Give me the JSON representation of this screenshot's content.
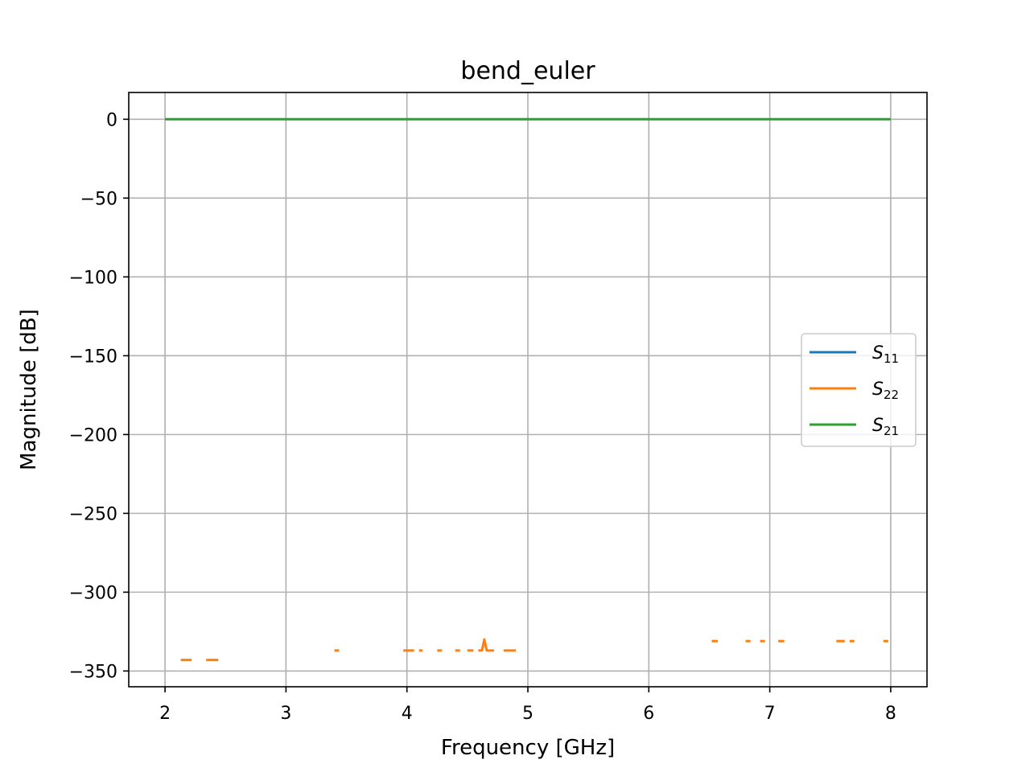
{
  "chart_data": {
    "type": "line",
    "title": "bend_euler",
    "xlabel": "Frequency [GHz]",
    "ylabel": "Magnitude [dB]",
    "xlim": [
      1.7,
      8.3
    ],
    "ylim": [
      -360,
      17
    ],
    "xticks": [
      2,
      3,
      4,
      5,
      6,
      7,
      8
    ],
    "yticks": [
      0,
      -50,
      -100,
      -150,
      -200,
      -250,
      -300,
      -350
    ],
    "xtick_labels": [
      "2",
      "3",
      "4",
      "5",
      "6",
      "7",
      "8"
    ],
    "ytick_labels": [
      "0",
      "−50",
      "−100",
      "−150",
      "−200",
      "−250",
      "−300",
      "−350"
    ],
    "grid": true,
    "legend": "center-right",
    "series": [
      {
        "name": "S11",
        "label_main": "S",
        "label_sub": "11",
        "color": "#1f77b4",
        "segments": []
      },
      {
        "name": "S22",
        "label_main": "S",
        "label_sub": "22",
        "color": "#ff7f0e",
        "segments": [
          [
            [
              2.13,
              -343
            ],
            [
              2.22,
              -343
            ]
          ],
          [
            [
              2.34,
              -343
            ],
            [
              2.44,
              -343
            ]
          ],
          [
            [
              3.4,
              -337
            ],
            [
              3.44,
              -337
            ]
          ],
          [
            [
              3.97,
              -337
            ],
            [
              4.06,
              -337
            ]
          ],
          [
            [
              4.1,
              -337
            ],
            [
              4.13,
              -337
            ]
          ],
          [
            [
              4.25,
              -337
            ],
            [
              4.29,
              -337
            ]
          ],
          [
            [
              4.4,
              -337
            ],
            [
              4.44,
              -337
            ]
          ],
          [
            [
              4.5,
              -337
            ],
            [
              4.55,
              -337
            ]
          ],
          [
            [
              4.59,
              -337
            ],
            [
              4.62,
              -337
            ],
            [
              4.64,
              -330
            ],
            [
              4.66,
              -337
            ],
            [
              4.72,
              -337
            ]
          ],
          [
            [
              4.8,
              -337
            ],
            [
              4.9,
              -337
            ]
          ],
          [
            [
              6.52,
              -331
            ],
            [
              6.57,
              -331
            ]
          ],
          [
            [
              6.8,
              -331
            ],
            [
              6.84,
              -331
            ]
          ],
          [
            [
              6.92,
              -331
            ],
            [
              6.96,
              -331
            ]
          ],
          [
            [
              7.07,
              -331
            ],
            [
              7.12,
              -331
            ]
          ],
          [
            [
              7.55,
              -331
            ],
            [
              7.62,
              -331
            ]
          ],
          [
            [
              7.66,
              -331
            ],
            [
              7.7,
              -331
            ]
          ],
          [
            [
              7.94,
              -331
            ],
            [
              7.98,
              -331
            ]
          ]
        ]
      },
      {
        "name": "S21",
        "label_main": "S",
        "label_sub": "21",
        "color": "#2ca02c",
        "segments": [
          [
            [
              2,
              0
            ],
            [
              8,
              0
            ]
          ]
        ]
      }
    ]
  }
}
